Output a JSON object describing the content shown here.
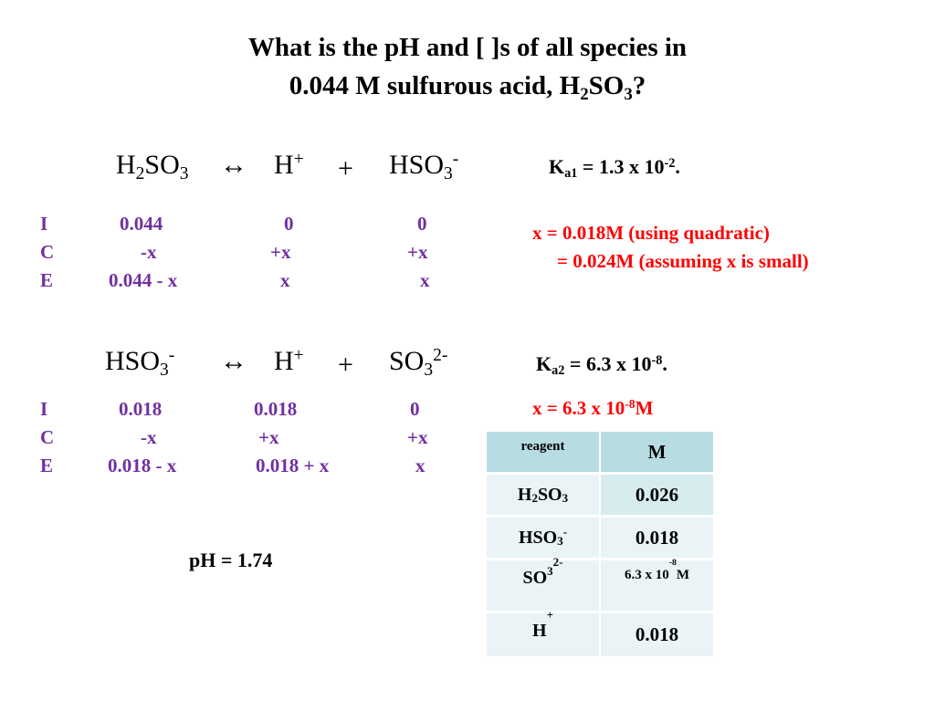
{
  "title": {
    "line1": "What is the pH and [ ]s of all species in",
    "line2_text": "0.044 M sulfurous acid, H",
    "line2_sub1": "2",
    "line2_mid": "SO",
    "line2_sub2": "3",
    "line2_end": "?"
  },
  "reaction1": {
    "reactant": {
      "main": "H",
      "sub1": "2",
      "mid": "SO",
      "sub2": "3"
    },
    "arrow": "↔",
    "product1": {
      "main": "H",
      "sup": "+"
    },
    "plus": "+",
    "product2": {
      "main": "HSO",
      "sub": "3",
      "sup": "-"
    },
    "ka": {
      "label": "K",
      "sub": "a1",
      "text": " = 1.3 x 10",
      "sup": "-2",
      "end": "."
    },
    "ice": {
      "I": {
        "label": "I",
        "c1": "0.044",
        "c2": "0",
        "c3": "0"
      },
      "C": {
        "label": "C",
        "c1": "-x",
        "c2": "+x",
        "c3": "+x"
      },
      "E": {
        "label": "E",
        "c1": "0.044 - x",
        "c2": "x",
        "c3": "x"
      }
    },
    "solution": {
      "line1": "x  =   0.018M (using quadratic)",
      "line2": "=  0.024M (assuming x is small)"
    }
  },
  "reaction2": {
    "reactant": {
      "main": "HSO",
      "sub": "3",
      "sup": "-"
    },
    "arrow": "↔",
    "product1": {
      "main": "H",
      "sup": "+"
    },
    "plus": "+",
    "product2": {
      "main": "SO",
      "sub": "3",
      "sup": "2-"
    },
    "ka": {
      "label": "K",
      "sub": "a2",
      "text": " = 6.3 x 10",
      "sup": "-8",
      "end": "."
    },
    "ice": {
      "I": {
        "label": "I",
        "c1": "0.018",
        "c2": "0.018",
        "c3": "0"
      },
      "C": {
        "label": "C",
        "c1": "-x",
        "c2": "+x",
        "c3": "+x"
      },
      "E": {
        "label": "E",
        "c1": "0.018 - x",
        "c2": "0.018 + x",
        "c3": "x"
      }
    },
    "solution": {
      "text": "x  =   6.3 x 10",
      "sup": "-8",
      "end": "M"
    }
  },
  "ph": "pH  = 1.74",
  "table": {
    "header": {
      "reagent": "reagent",
      "conc": "M"
    },
    "rows": [
      {
        "species": {
          "main": "H",
          "sub1": "2",
          "mid": "SO",
          "sub2": "3"
        },
        "value": "0.026"
      },
      {
        "species": {
          "main": "HSO",
          "sub": "3",
          "sup": "-"
        },
        "value": "0.018"
      },
      {
        "species": {
          "main": "SO",
          "sub": "3",
          "sup": "2-"
        },
        "value": {
          "text": "6.3 x 10",
          "sup": "-8",
          "end": "M"
        }
      },
      {
        "species": {
          "main": "H",
          "sup": "+"
        },
        "value": "0.018"
      }
    ]
  },
  "colors": {
    "ice_text": "#7030A0",
    "solution_text": "#FF0000",
    "table_header_bg": "#B7DDE3",
    "table_row_light": "#EAF4F6",
    "table_row_alt": "#D6ECEF"
  }
}
